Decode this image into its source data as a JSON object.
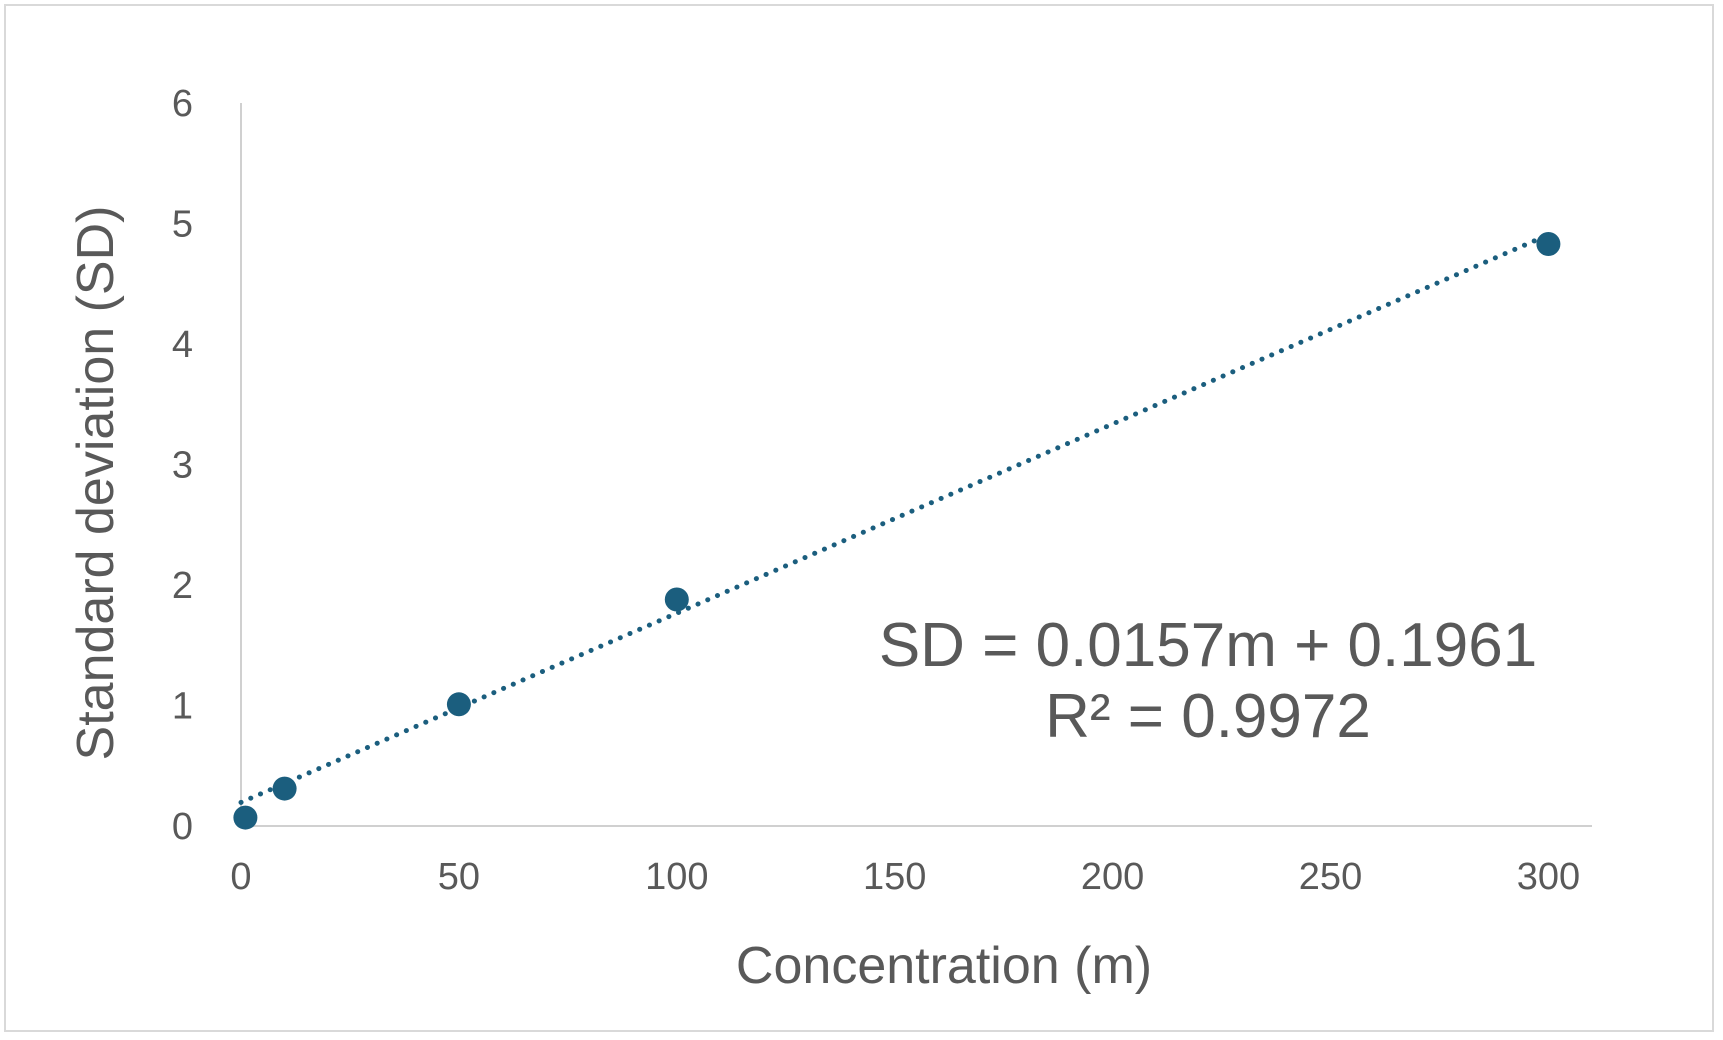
{
  "chart_data": {
    "type": "scatter",
    "xlabel": "Concentration (m)",
    "ylabel": "Standard deviation (SD)",
    "xlim": [
      0,
      310
    ],
    "ylim": [
      0,
      6
    ],
    "x_ticks": [
      "0",
      "50",
      "100",
      "150",
      "200",
      "250",
      "300"
    ],
    "y_ticks": [
      "0",
      "1",
      "2",
      "3",
      "4",
      "5",
      "6"
    ],
    "grid": false,
    "legend": "none",
    "marker_color": "#1b5e7e",
    "trendline_color": "#1b5e7e",
    "series": [
      {
        "x": [
          1,
          10,
          50,
          100,
          300
        ],
        "y": [
          0.07,
          0.31,
          1.01,
          1.88,
          4.83
        ]
      }
    ],
    "trendline": {
      "type": "linear",
      "style": "dotted",
      "slope": 0.0157,
      "intercept": 0.1961,
      "x_range": [
        0,
        300
      ]
    },
    "annotations": {
      "equation": "SD = 0.0157m + 0.1961",
      "r_squared": "R² = 0.9972"
    }
  }
}
